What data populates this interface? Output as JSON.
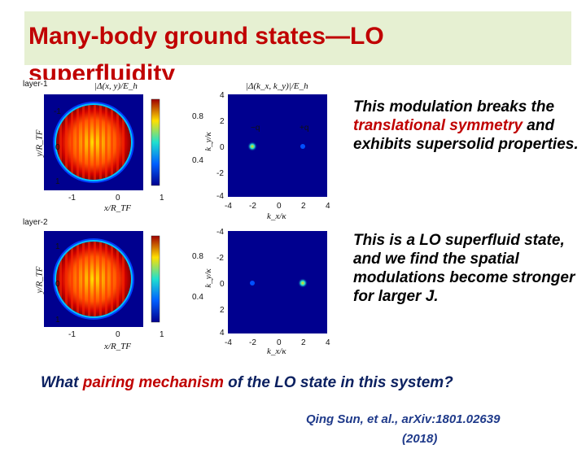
{
  "slide": {
    "title_line1": "Many-body ground states—LO",
    "title_line2": "superfluidity",
    "note1": {
      "parts": [
        "This modulation breaks the ",
        "translational symmetry",
        " and exhibits supersolid properties."
      ]
    },
    "note2": "This is a LO superfluid state, and we find the spatial modulations become stronger for larger J.",
    "question": {
      "before": "What ",
      "highlight": "pairing mechanism",
      "after": " of the LO state in this system?"
    },
    "citation_line1": "Qing  Sun,  et  al.,  arXiv:1801.02639",
    "citation_line2": "(2018)"
  },
  "figure": {
    "layers": [
      {
        "label": "layer-1",
        "real_space": {
          "title": "|Δ(x, y)/E_h",
          "xlabel": "x/R_TF",
          "ylabel": "y/R_TF",
          "xticks": [
            "-1",
            "0",
            "1"
          ],
          "yticks": [
            "-1",
            "0",
            "1"
          ],
          "colorbar_ticks": [
            "0.8",
            "0.4"
          ]
        },
        "momentum_space": {
          "title": "|Δ(k_x, k_y)|/E_h",
          "xlabel": "k_x/κ",
          "ylabel": "k_y/κ",
          "xticks": [
            "-4",
            "-2",
            "0",
            "2",
            "4"
          ],
          "yticks": [
            "4",
            "2",
            "0",
            "-2",
            "-4"
          ],
          "annotations": [
            "−q",
            "+q"
          ]
        }
      },
      {
        "label": "layer-2",
        "real_space": {
          "xlabel": "x/R_TF",
          "ylabel": "y/R_TF",
          "xticks": [
            "-1",
            "0",
            "1"
          ],
          "yticks": [
            "1",
            "0",
            "1"
          ],
          "colorbar_ticks": [
            "0.8",
            "0.4"
          ]
        },
        "momentum_space": {
          "xlabel": "k_x/κ",
          "ylabel": "k_y/κ",
          "xticks": [
            "-4",
            "-2",
            "0",
            "2",
            "4"
          ],
          "yticks": [
            "-4",
            "-2",
            "0",
            "2",
            "4"
          ]
        }
      }
    ]
  },
  "colors": {
    "title": "#c00000",
    "title_background": "#e6f0d2",
    "highlight": "#c00000",
    "question": "#0b2060",
    "citation": "#1f3a8a",
    "map_background": "#00008f"
  }
}
